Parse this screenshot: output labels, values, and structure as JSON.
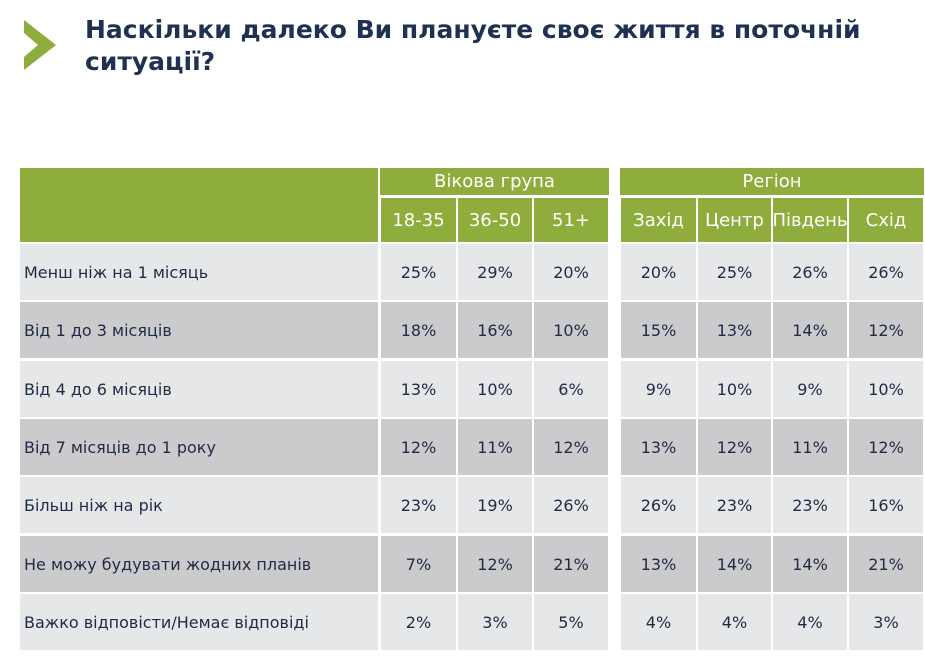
{
  "title": "Наскільки далеко Ви плануєте своє життя в поточній ситуації?",
  "colors": {
    "accent": "#8fad3c",
    "row_light": "#e6e7e8",
    "row_dark": "#cbcbcd",
    "title": "#1f3150"
  },
  "chart_data": {
    "type": "table",
    "title": "Наскільки далеко Ви плануєте своє життя в поточній ситуації?",
    "groups": [
      {
        "name": "Вікова група",
        "columns": [
          "18-35",
          "36-50",
          "51+"
        ]
      },
      {
        "name": "Регіон",
        "columns": [
          "Захід",
          "Центр",
          "Південь",
          "Схід"
        ]
      }
    ],
    "rows": [
      {
        "label": "Менш ніж на 1 місяць",
        "values": [
          "25%",
          "29%",
          "20%",
          "20%",
          "25%",
          "26%",
          "26%"
        ]
      },
      {
        "label": "Від 1 до 3 місяців",
        "values": [
          "18%",
          "16%",
          "10%",
          "15%",
          "13%",
          "14%",
          "12%"
        ]
      },
      {
        "label": "Від 4 до 6 місяців",
        "values": [
          "13%",
          "10%",
          "6%",
          "9%",
          "10%",
          "9%",
          "10%"
        ]
      },
      {
        "label": "Від 7 місяців до 1 року",
        "values": [
          "12%",
          "11%",
          "12%",
          "13%",
          "12%",
          "11%",
          "12%"
        ]
      },
      {
        "label": "Більш ніж на рік",
        "values": [
          "23%",
          "19%",
          "26%",
          "26%",
          "23%",
          "23%",
          "16%"
        ]
      },
      {
        "label": "Не можу будувати жодних планів",
        "values": [
          "7%",
          "12%",
          "21%",
          "13%",
          "14%",
          "14%",
          "21%"
        ]
      },
      {
        "label": "Важко відповісти/Немає відповіді",
        "values": [
          "2%",
          "3%",
          "5%",
          "4%",
          "4%",
          "4%",
          "3%"
        ]
      }
    ]
  }
}
